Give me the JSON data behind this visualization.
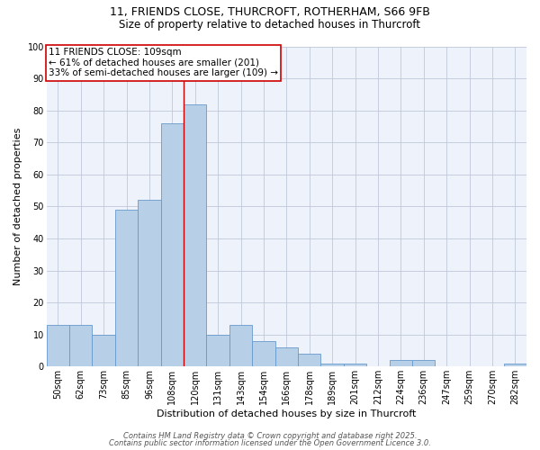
{
  "title_line1": "11, FRIENDS CLOSE, THURCROFT, ROTHERHAM, S66 9FB",
  "title_line2": "Size of property relative to detached houses in Thurcroft",
  "xlabel": "Distribution of detached houses by size in Thurcroft",
  "ylabel": "Number of detached properties",
  "bar_labels": [
    "50sqm",
    "62sqm",
    "73sqm",
    "85sqm",
    "96sqm",
    "108sqm",
    "120sqm",
    "131sqm",
    "143sqm",
    "154sqm",
    "166sqm",
    "178sqm",
    "189sqm",
    "201sqm",
    "212sqm",
    "224sqm",
    "236sqm",
    "247sqm",
    "259sqm",
    "270sqm",
    "282sqm"
  ],
  "bar_values": [
    13,
    13,
    10,
    49,
    52,
    76,
    82,
    10,
    13,
    8,
    6,
    4,
    1,
    1,
    0,
    2,
    2,
    0,
    0,
    0,
    1
  ],
  "bar_color": "#b8cfe8",
  "bar_edge_color": "#6699cc",
  "vline_x_index": 5,
  "vline_color": "#cc0000",
  "annotation_text": "11 FRIENDS CLOSE: 109sqm\n← 61% of detached houses are smaller (201)\n33% of semi-detached houses are larger (109) →",
  "annotation_box_color": "#ffffff",
  "annotation_box_edge": "#cc0000",
  "annotation_fontsize": 7.5,
  "yticks": [
    0,
    10,
    20,
    30,
    40,
    50,
    60,
    70,
    80,
    90,
    100
  ],
  "ylim": [
    0,
    100
  ],
  "footer_line1": "Contains HM Land Registry data © Crown copyright and database right 2025.",
  "footer_line2": "Contains public sector information licensed under the Open Government Licence 3.0.",
  "bg_color": "#eef2fa",
  "title_fontsize": 9,
  "subtitle_fontsize": 8.5,
  "axis_label_fontsize": 8,
  "tick_fontsize": 7
}
